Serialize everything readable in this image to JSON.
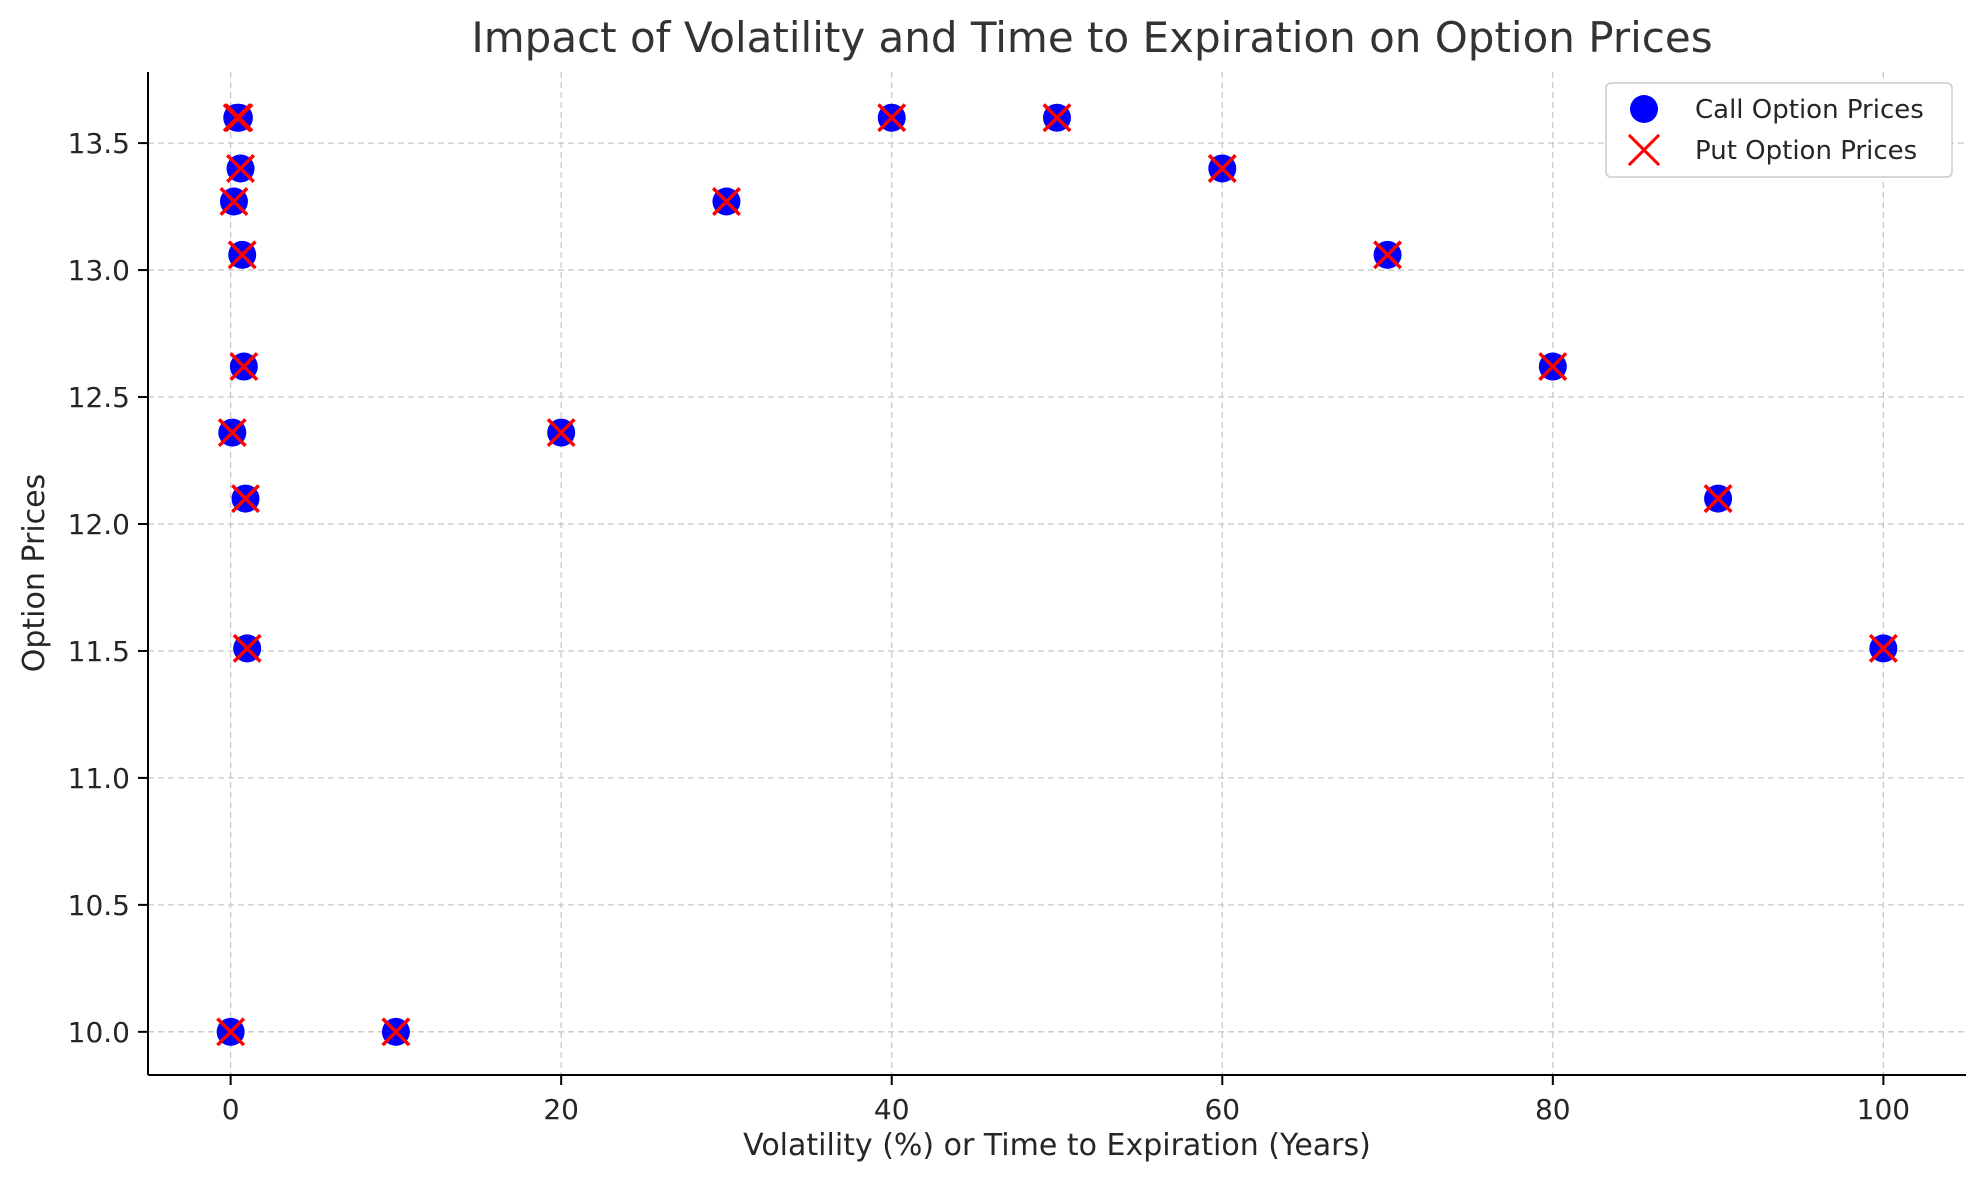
{
  "chart_data": {
    "type": "scatter",
    "title": "Impact of Volatility and Time to Expiration on Option Prices",
    "xlabel": "Volatility (%) or Time to Expiration (Years)",
    "ylabel": "Option Prices",
    "xlim": [
      -5,
      105
    ],
    "ylim": [
      9.83,
      13.78
    ],
    "x_ticks": [
      0,
      20,
      40,
      60,
      80,
      100
    ],
    "x_tick_labels": [
      "0",
      "20",
      "40",
      "60",
      "80",
      "100"
    ],
    "y_ticks": [
      10.0,
      10.5,
      11.0,
      11.5,
      12.0,
      12.5,
      13.0,
      13.5
    ],
    "y_tick_labels": [
      "10.0",
      "10.5",
      "11.0",
      "11.5",
      "12.0",
      "12.5",
      "13.0",
      "13.5"
    ],
    "grid": true,
    "legend_position": "top-right",
    "series": [
      {
        "name": "Call Option Prices",
        "marker": "circle",
        "color": "#0000ff",
        "points": [
          {
            "x": 0,
            "y": 10.0
          },
          {
            "x": 10,
            "y": 10.0
          },
          {
            "x": 20,
            "y": 12.36
          },
          {
            "x": 30,
            "y": 13.27
          },
          {
            "x": 40,
            "y": 13.6
          },
          {
            "x": 50,
            "y": 13.6
          },
          {
            "x": 60,
            "y": 13.4
          },
          {
            "x": 70,
            "y": 13.06
          },
          {
            "x": 80,
            "y": 12.62
          },
          {
            "x": 90,
            "y": 12.1
          },
          {
            "x": 100,
            "y": 11.51
          },
          {
            "x": 0.1,
            "y": 12.36
          },
          {
            "x": 0.2,
            "y": 13.27
          },
          {
            "x": 0.4,
            "y": 13.6
          },
          {
            "x": 0.5,
            "y": 13.6
          },
          {
            "x": 0.6,
            "y": 13.4
          },
          {
            "x": 0.7,
            "y": 13.06
          },
          {
            "x": 0.8,
            "y": 12.62
          },
          {
            "x": 0.9,
            "y": 12.1
          },
          {
            "x": 1.0,
            "y": 11.51
          }
        ]
      },
      {
        "name": "Put Option Prices",
        "marker": "x",
        "color": "#ff0000",
        "points": [
          {
            "x": 0,
            "y": 10.0
          },
          {
            "x": 10,
            "y": 10.0
          },
          {
            "x": 20,
            "y": 12.36
          },
          {
            "x": 30,
            "y": 13.27
          },
          {
            "x": 40,
            "y": 13.6
          },
          {
            "x": 50,
            "y": 13.6
          },
          {
            "x": 60,
            "y": 13.4
          },
          {
            "x": 70,
            "y": 13.06
          },
          {
            "x": 80,
            "y": 12.62
          },
          {
            "x": 90,
            "y": 12.1
          },
          {
            "x": 100,
            "y": 11.51
          },
          {
            "x": 0.1,
            "y": 12.36
          },
          {
            "x": 0.2,
            "y": 13.27
          },
          {
            "x": 0.4,
            "y": 13.6
          },
          {
            "x": 0.5,
            "y": 13.6
          },
          {
            "x": 0.6,
            "y": 13.4
          },
          {
            "x": 0.7,
            "y": 13.06
          },
          {
            "x": 0.8,
            "y": 12.62
          },
          {
            "x": 0.9,
            "y": 12.1
          },
          {
            "x": 1.0,
            "y": 11.51
          }
        ]
      }
    ]
  }
}
